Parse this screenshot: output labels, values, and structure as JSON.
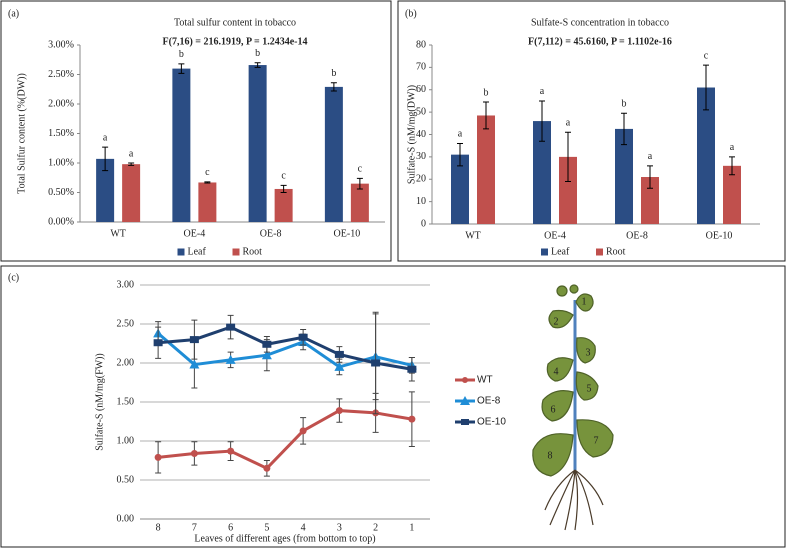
{
  "chart_data": [
    {
      "type": "bar",
      "panel_label": "(a)",
      "title": "Total sulfur content in tobacco",
      "subtitle": "F(7,16) = 216.1919, P = 1.2434e-14",
      "ylabel": "Total Sulfur content (%(DW))",
      "categories": [
        "WT",
        "OE-4",
        "OE-8",
        "OE-10"
      ],
      "series": [
        {
          "name": "Leaf",
          "color": "#2b4d84",
          "values": [
            1.07,
            2.6,
            2.66,
            2.29
          ],
          "errors": [
            0.2,
            0.08,
            0.04,
            0.07
          ],
          "letters": [
            "a",
            "b",
            "b",
            "b"
          ]
        },
        {
          "name": "Root",
          "color": "#c0504d",
          "values": [
            0.98,
            0.67,
            0.56,
            0.65
          ],
          "errors": [
            0.02,
            0.01,
            0.06,
            0.09
          ],
          "letters": [
            "a",
            "c",
            "c",
            "c"
          ]
        }
      ],
      "ylim": [
        0,
        3
      ],
      "yticks": [
        {
          "value": 0,
          "label": "0.00%"
        },
        {
          "value": 0.5,
          "label": "0.50%"
        },
        {
          "value": 1,
          "label": "1.00%"
        },
        {
          "value": 1.5,
          "label": "1.50%"
        },
        {
          "value": 2,
          "label": "2.00%"
        },
        {
          "value": 2.5,
          "label": "2.50%"
        },
        {
          "value": 3,
          "label": "3.00%"
        }
      ],
      "grid": false,
      "legend": "bottom"
    },
    {
      "type": "bar",
      "panel_label": "(b)",
      "title": "Sulfate-S concentration in tobacco",
      "subtitle": "F(7,112) = 45.6160, P = 1.1102e-16",
      "ylabel": "Sulfate-S (nM/mg(DW))",
      "categories": [
        "WT",
        "OE-4",
        "OE-8",
        "OE-10"
      ],
      "series": [
        {
          "name": "Leaf",
          "color": "#2b4d84",
          "values": [
            31,
            46,
            42.5,
            61
          ],
          "errors": [
            5,
            9,
            7,
            10
          ],
          "letters": [
            "a",
            "a",
            "b",
            "c"
          ]
        },
        {
          "name": "Root",
          "color": "#c0504d",
          "values": [
            48.5,
            30,
            21,
            26
          ],
          "errors": [
            6,
            11,
            5,
            4
          ],
          "letters": [
            "b",
            "a",
            "a",
            "a"
          ]
        }
      ],
      "ylim": [
        0,
        80
      ],
      "yticks": [
        0,
        10,
        20,
        30,
        40,
        50,
        60,
        70,
        80
      ],
      "grid": false,
      "legend": "bottom"
    },
    {
      "type": "line",
      "panel_label": "(c)",
      "xlabel": "Leaves of different ages (from bottom to top)",
      "ylabel": "Sulfate-S (nM/mg(FW))",
      "categories": [
        "8",
        "7",
        "6",
        "5",
        "4",
        "3",
        "2",
        "1"
      ],
      "series": [
        {
          "name": "WT",
          "color": "#c0504d",
          "marker": "circle",
          "values": [
            0.79,
            0.84,
            0.87,
            0.65,
            1.13,
            1.39,
            1.36,
            1.28
          ],
          "errors": [
            0.2,
            0.15,
            0.12,
            0.1,
            0.17,
            0.15,
            0.25,
            0.35
          ]
        },
        {
          "name": "OE-8",
          "color": "#1f8dd6",
          "marker": "triangle",
          "values": [
            2.38,
            1.98,
            2.04,
            2.1,
            2.27,
            1.95,
            2.08,
            1.97
          ],
          "errors": [
            0.15,
            0.3,
            0.1,
            0.2,
            0.1,
            0.1,
            0.55,
            0.1
          ]
        },
        {
          "name": "OE-10",
          "color": "#1f3f6e",
          "marker": "square",
          "values": [
            2.26,
            2.3,
            2.46,
            2.24,
            2.33,
            2.11,
            2.0,
            1.92
          ],
          "errors": [
            0.2,
            0.25,
            0.15,
            0.1,
            0.1,
            0.1,
            0.65,
            0.15
          ]
        }
      ],
      "ylim": [
        0,
        3
      ],
      "yticks": [
        {
          "value": 0,
          "label": "0.00"
        },
        {
          "value": 0.5,
          "label": "0.50"
        },
        {
          "value": 1,
          "label": "1.00"
        },
        {
          "value": 1.5,
          "label": "1.50"
        },
        {
          "value": 2,
          "label": "2.00"
        },
        {
          "value": 2.5,
          "label": "2.50"
        },
        {
          "value": 3,
          "label": "3.00"
        }
      ],
      "grid": true,
      "legend": "right"
    }
  ],
  "plant": {
    "leaves": [
      "1",
      "2",
      "3",
      "4",
      "5",
      "6",
      "7",
      "8"
    ]
  }
}
